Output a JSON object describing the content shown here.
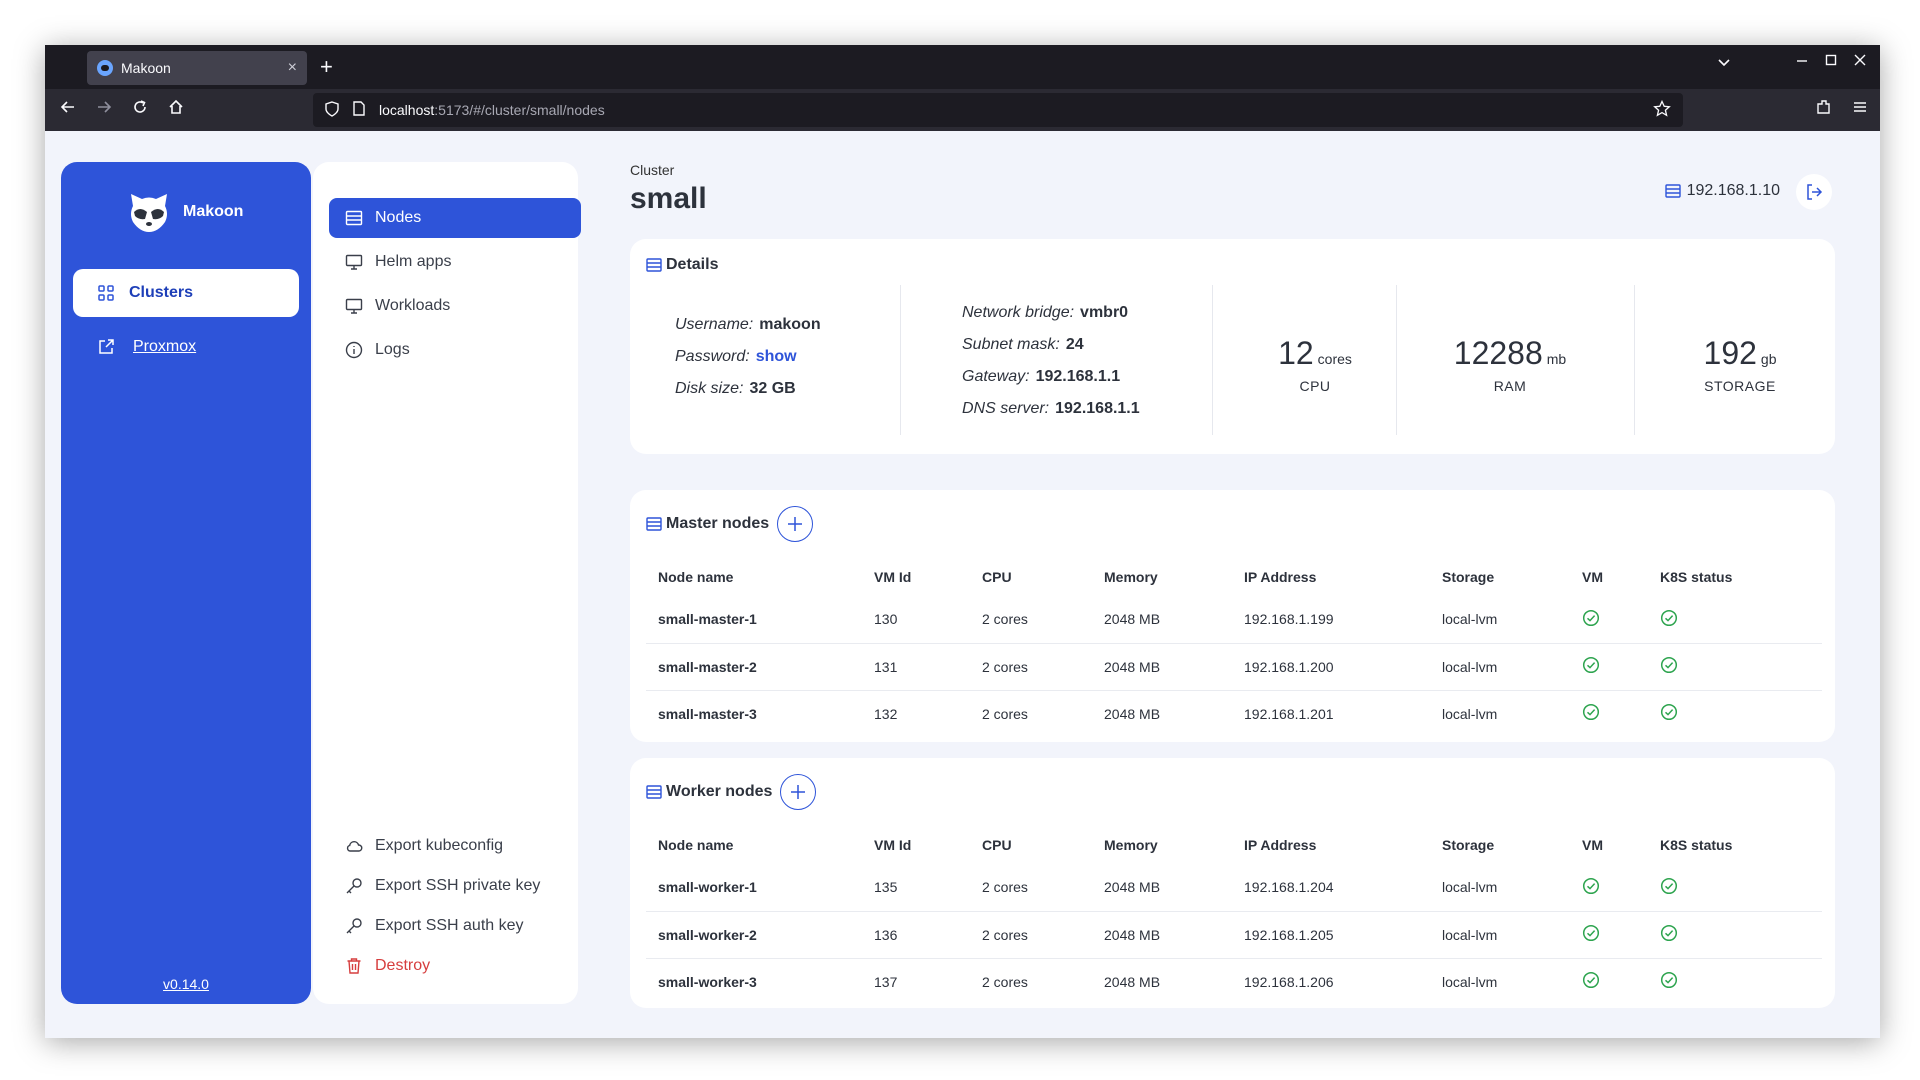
{
  "browser": {
    "tab_title": "Makoon",
    "tab_close": "×",
    "new_tab": "+",
    "url_host": "localhost",
    "url_path": ":5173/#/cluster/small/nodes"
  },
  "sidebar": {
    "brand": "Makoon",
    "clusters_label": "Clusters",
    "proxmox_label": "Proxmox",
    "version": "v0.14.0"
  },
  "menu": {
    "nodes": "Nodes",
    "helm_apps": "Helm apps",
    "workloads": "Workloads",
    "logs": "Logs",
    "export_kubeconfig": "Export kubeconfig",
    "export_ssh_private": "Export SSH private key",
    "export_ssh_auth": "Export SSH auth key",
    "destroy": "Destroy"
  },
  "header": {
    "breadcrumb": "Cluster",
    "title": "small",
    "host_ip": "192.168.1.10"
  },
  "details": {
    "title": "Details",
    "username_label": "Username:",
    "username": "makoon",
    "password_label": "Password:",
    "password": "show",
    "disk_label": "Disk size:",
    "disk": "32 GB",
    "bridge_label": "Network bridge:",
    "bridge": "vmbr0",
    "subnet_label": "Subnet mask:",
    "subnet": "24",
    "gateway_label": "Gateway:",
    "gateway": "192.168.1.1",
    "dns_label": "DNS server:",
    "dns": "192.168.1.1",
    "cpu": {
      "value": "12",
      "unit": "cores",
      "label": "CPU"
    },
    "ram": {
      "value": "12288",
      "unit": "mb",
      "label": "RAM"
    },
    "storage": {
      "value": "192",
      "unit": "gb",
      "label": "STORAGE"
    }
  },
  "columns": [
    "Node name",
    "VM Id",
    "CPU",
    "Memory",
    "IP Address",
    "Storage",
    "VM",
    "K8S status"
  ],
  "master": {
    "title": "Master nodes",
    "rows": [
      [
        "small-master-1",
        "130",
        "2 cores",
        "2048 MB",
        "192.168.1.199",
        "local-lvm"
      ],
      [
        "small-master-2",
        "131",
        "2 cores",
        "2048 MB",
        "192.168.1.200",
        "local-lvm"
      ],
      [
        "small-master-3",
        "132",
        "2 cores",
        "2048 MB",
        "192.168.1.201",
        "local-lvm"
      ]
    ]
  },
  "worker": {
    "title": "Worker nodes",
    "rows": [
      [
        "small-worker-1",
        "135",
        "2 cores",
        "2048 MB",
        "192.168.1.204",
        "local-lvm"
      ],
      [
        "small-worker-2",
        "136",
        "2 cores",
        "2048 MB",
        "192.168.1.205",
        "local-lvm"
      ],
      [
        "small-worker-3",
        "137",
        "2 cores",
        "2048 MB",
        "192.168.1.206",
        "local-lvm"
      ]
    ]
  },
  "colors": {
    "primary": "#2e54d9",
    "success": "#2ea44f",
    "danger": "#d63e3e"
  }
}
